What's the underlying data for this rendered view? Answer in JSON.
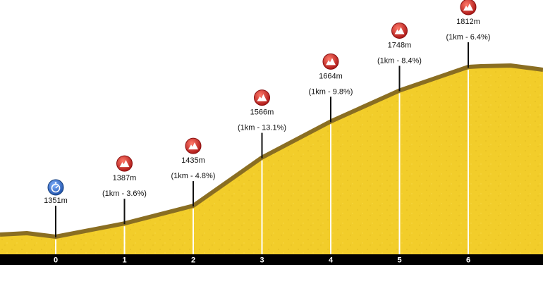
{
  "chart_data": {
    "type": "area",
    "x": [
      0,
      1,
      2,
      3,
      4,
      5,
      6
    ],
    "xticks": [
      "0",
      "1",
      "2",
      "3",
      "4",
      "5",
      "6"
    ],
    "points": [
      {
        "km": 0,
        "elevation": 1351,
        "elevation_label": "1351m",
        "segment_label": "",
        "icon": "start-icon"
      },
      {
        "km": 1,
        "elevation": 1387,
        "elevation_label": "1387m",
        "segment_label": "(1km - 3.6%)",
        "icon": "climb-icon"
      },
      {
        "km": 2,
        "elevation": 1435,
        "elevation_label": "1435m",
        "segment_label": "(1km - 4.8%)",
        "icon": "climb-icon"
      },
      {
        "km": 3,
        "elevation": 1566,
        "elevation_label": "1566m",
        "segment_label": "(1km - 13.1%)",
        "icon": "climb-icon"
      },
      {
        "km": 4,
        "elevation": 1664,
        "elevation_label": "1664m",
        "segment_label": "(1km - 9.8%)",
        "icon": "climb-icon"
      },
      {
        "km": 5,
        "elevation": 1748,
        "elevation_label": "1748m",
        "segment_label": "(1km - 8.4%)",
        "icon": "climb-icon"
      },
      {
        "km": 6,
        "elevation": 1812,
        "elevation_label": "1812m",
        "segment_label": "(1km - 6.4%)",
        "icon": "climb-icon"
      }
    ],
    "colors": {
      "fill": "#f2cd2a",
      "edge": "#8a6e22",
      "axis": "#000000",
      "icon_red": "#c81e1e",
      "icon_blue": "#2a64c8"
    }
  }
}
